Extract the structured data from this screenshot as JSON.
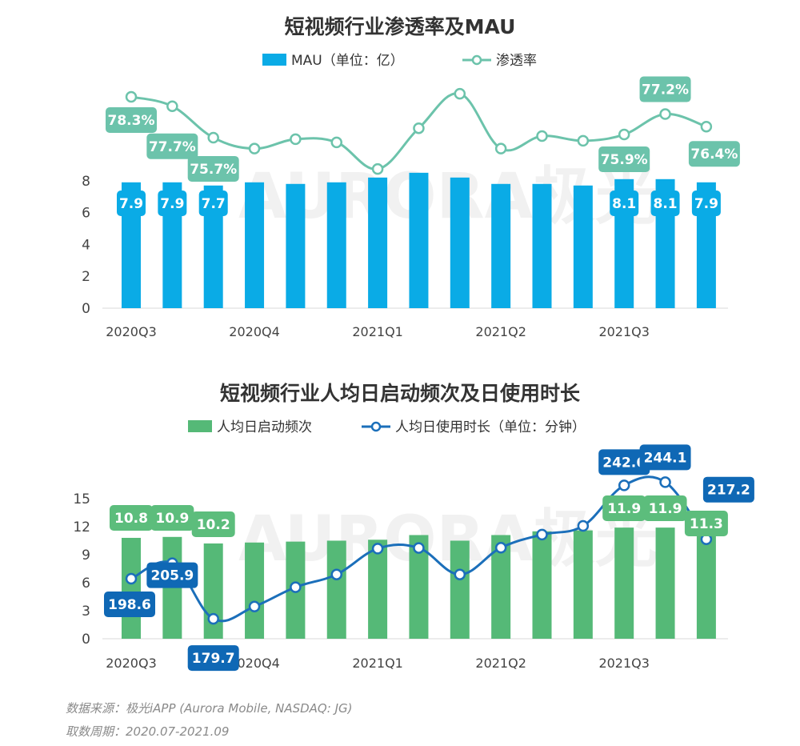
{
  "chart_data": [
    {
      "type": "bar+line",
      "title": "短视频行业渗透率及MAU",
      "legend": [
        "MAU（单位：亿）",
        "渗透率"
      ],
      "legend_position": "top",
      "x_tick_labels": [
        "2020Q3",
        "2020Q4",
        "2021Q1",
        "2021Q2",
        "2021Q3"
      ],
      "categories": [
        "2020-07",
        "2020-08",
        "2020-09",
        "2020-10",
        "2020-11",
        "2020-12",
        "2021-01",
        "2021-02",
        "2021-03",
        "2021-04",
        "2021-05",
        "2021-06",
        "2021-07",
        "2021-08",
        "2021-09"
      ],
      "y_ticks": [
        0,
        2,
        4,
        6,
        8
      ],
      "ylim": [
        0,
        8
      ],
      "series": [
        {
          "name": "MAU（单位：亿）",
          "kind": "bar",
          "color": "#0aabe6",
          "values": [
            7.9,
            7.9,
            7.7,
            7.9,
            7.8,
            7.9,
            8.2,
            8.5,
            8.2,
            7.8,
            7.8,
            7.7,
            8.1,
            8.1,
            7.9
          ],
          "labels": [
            "7.9",
            "7.9",
            "7.7",
            "",
            "",
            "",
            "",
            "",
            "",
            "",
            "",
            "",
            "8.1",
            "8.1",
            "7.9"
          ]
        },
        {
          "name": "渗透率",
          "kind": "line",
          "color": "#6cc3ab",
          "values": [
            78.3,
            77.7,
            75.7,
            75.0,
            75.6,
            75.4,
            73.7,
            76.3,
            78.5,
            75.0,
            75.8,
            75.5,
            75.9,
            77.2,
            76.4
          ],
          "labels": [
            "78.3%",
            "77.7%",
            "75.7%",
            "",
            "",
            "",
            "",
            "",
            "",
            "",
            "",
            "",
            "75.9%",
            "77.2%",
            "76.4%"
          ]
        }
      ],
      "grid": false
    },
    {
      "type": "bar+line",
      "title": "短视频行业人均日启动频次及日使用时长",
      "legend": [
        "人均日启动频次",
        "人均日使用时长（单位：分钟）"
      ],
      "legend_position": "top",
      "x_tick_labels": [
        "2020Q3",
        "2020Q4",
        "2021Q1",
        "2021Q2",
        "2021Q3"
      ],
      "categories": [
        "2020-07",
        "2020-08",
        "2020-09",
        "2020-10",
        "2020-11",
        "2020-12",
        "2021-01",
        "2021-02",
        "2021-03",
        "2021-04",
        "2021-05",
        "2021-06",
        "2021-07",
        "2021-08",
        "2021-09"
      ],
      "y_ticks": [
        0,
        3,
        6,
        9,
        12,
        15
      ],
      "ylim": [
        0,
        15
      ],
      "series": [
        {
          "name": "人均日启动频次",
          "kind": "bar",
          "color": "#55b977",
          "values": [
            10.8,
            10.9,
            10.2,
            10.3,
            10.4,
            10.5,
            10.6,
            11.1,
            10.5,
            11.1,
            11.5,
            11.6,
            11.9,
            11.9,
            11.3
          ],
          "labels": [
            "10.8",
            "10.9",
            "10.2",
            "",
            "",
            "",
            "",
            "",
            "",
            "",
            "",
            "",
            "11.9",
            "11.9",
            "11.3"
          ]
        },
        {
          "name": "人均日使用时长（单位：分钟）",
          "kind": "line",
          "color": "#1b6fba",
          "values": [
            198.6,
            205.9,
            179.7,
            185.5,
            194.6,
            200.6,
            212.8,
            213.1,
            200.6,
            213.2,
            219.4,
            223.5,
            242.6,
            244.1,
            217.2
          ],
          "labels": [
            "198.6",
            "205.9",
            "179.7",
            "",
            "",
            "",
            "",
            "",
            "",
            "",
            "",
            "",
            "242.6",
            "244.1",
            "217.2"
          ]
        }
      ],
      "grid": false
    }
  ],
  "watermark": "AURORA极光",
  "footer": {
    "source": "数据来源：极光iAPP (Aurora Mobile, NASDAQ: JG)",
    "period": "取数周期：2020.07-2021.09"
  }
}
